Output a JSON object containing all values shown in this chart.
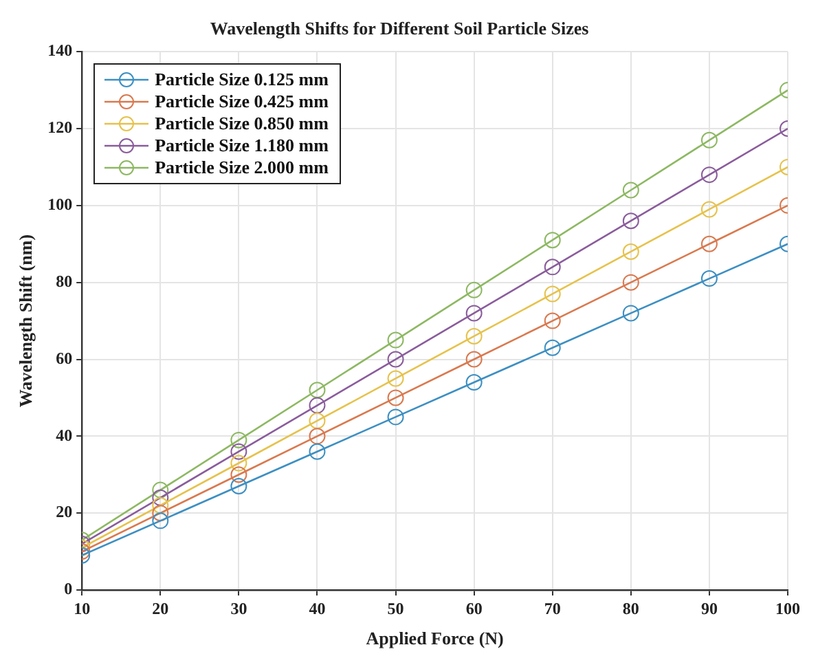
{
  "chart_data": {
    "type": "line",
    "title": "Wavelength Shifts for Different Soil Particle Sizes",
    "xlabel": "Applied Force (N)",
    "ylabel": "Wavelength Shift (nm)",
    "x": [
      10,
      20,
      30,
      40,
      50,
      60,
      70,
      80,
      90,
      100
    ],
    "series": [
      {
        "name": "Particle Size 0.125 mm",
        "color": "#3d8fc2",
        "values": [
          9,
          18,
          27,
          36,
          45,
          54,
          63,
          72,
          81,
          90
        ]
      },
      {
        "name": "Particle Size 0.425 mm",
        "color": "#d9794f",
        "values": [
          10,
          20,
          30,
          40,
          50,
          60,
          70,
          80,
          90,
          100
        ]
      },
      {
        "name": "Particle Size 0.850 mm",
        "color": "#e6c24c",
        "values": [
          11,
          22,
          33,
          44,
          55,
          66,
          77,
          88,
          99,
          110
        ]
      },
      {
        "name": "Particle Size 1.180 mm",
        "color": "#8a5c9c",
        "values": [
          12,
          24,
          36,
          48,
          60,
          72,
          84,
          96,
          108,
          120
        ]
      },
      {
        "name": "Particle Size 2.000 mm",
        "color": "#8db862",
        "values": [
          13,
          26,
          39,
          52,
          65,
          78,
          91,
          104,
          117,
          130
        ]
      }
    ],
    "xlim": [
      10,
      100
    ],
    "xticks": [
      10,
      20,
      30,
      40,
      50,
      60,
      70,
      80,
      90,
      100
    ],
    "ylim": [
      0,
      140
    ],
    "yticks": [
      0,
      20,
      40,
      60,
      80,
      100,
      120,
      140
    ],
    "grid": true,
    "legend": "top left",
    "marker": "circle",
    "line_style": "solid"
  }
}
